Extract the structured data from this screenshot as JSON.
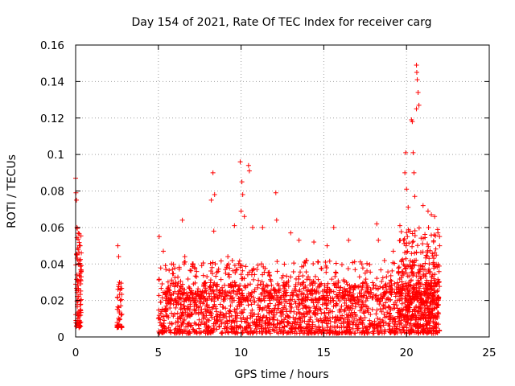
{
  "chart_data": {
    "type": "scatter",
    "title": "Day 154 of 2021, Rate Of TEC Index for receiver carg",
    "xlabel": "GPS time / hours",
    "ylabel": "ROTI / TECUs",
    "xlim": [
      0,
      25
    ],
    "ylim": [
      0,
      0.16
    ],
    "x_ticks": [
      0,
      5,
      10,
      15,
      20,
      25
    ],
    "x_tick_labels": [
      "0",
      "5",
      "10",
      "15",
      "20",
      "25"
    ],
    "y_ticks": [
      0,
      0.02,
      0.04,
      0.06,
      0.08,
      0.1,
      0.12,
      0.14,
      0.16
    ],
    "y_tick_labels": [
      "0",
      "0.02",
      "0.04",
      "0.06",
      "0.08",
      "0.1",
      "0.12",
      "0.14",
      "0.16"
    ],
    "grid": true,
    "marker": "plus",
    "series": [
      {
        "name": "ROTI",
        "color": "#ff0000",
        "points": [
          [
            0.0,
            0.087
          ],
          [
            0.02,
            0.079
          ],
          [
            0.05,
            0.075
          ],
          [
            0.08,
            0.06
          ],
          [
            0.1,
            0.045
          ],
          [
            0.12,
            0.03
          ],
          [
            0.15,
            0.02
          ],
          [
            0.18,
            0.012
          ],
          [
            0.2,
            0.008
          ],
          [
            0.25,
            0.05
          ],
          [
            0.28,
            0.035
          ],
          [
            0.3,
            0.015
          ],
          [
            2.55,
            0.05
          ],
          [
            2.6,
            0.044
          ],
          [
            2.65,
            0.03
          ],
          [
            2.7,
            0.02
          ],
          [
            2.75,
            0.012
          ],
          [
            5.05,
            0.055
          ],
          [
            5.3,
            0.047
          ],
          [
            5.8,
            0.04
          ],
          [
            6.45,
            0.064
          ],
          [
            6.6,
            0.044
          ],
          [
            7.3,
            0.033
          ],
          [
            8.2,
            0.075
          ],
          [
            8.3,
            0.09
          ],
          [
            8.4,
            0.078
          ],
          [
            8.35,
            0.058
          ],
          [
            9.2,
            0.044
          ],
          [
            9.6,
            0.061
          ],
          [
            9.95,
            0.096
          ],
          [
            10.05,
            0.085
          ],
          [
            10.1,
            0.078
          ],
          [
            10.0,
            0.069
          ],
          [
            10.2,
            0.066
          ],
          [
            10.45,
            0.094
          ],
          [
            10.5,
            0.091
          ],
          [
            10.7,
            0.06
          ],
          [
            11.3,
            0.06
          ],
          [
            12.1,
            0.079
          ],
          [
            12.15,
            0.064
          ],
          [
            13.0,
            0.057
          ],
          [
            13.5,
            0.053
          ],
          [
            14.4,
            0.052
          ],
          [
            15.2,
            0.05
          ],
          [
            15.6,
            0.06
          ],
          [
            16.5,
            0.053
          ],
          [
            17.3,
            0.04
          ],
          [
            18.2,
            0.062
          ],
          [
            18.3,
            0.053
          ],
          [
            19.2,
            0.047
          ],
          [
            19.6,
            0.061
          ],
          [
            19.9,
            0.09
          ],
          [
            19.95,
            0.101
          ],
          [
            20.0,
            0.081
          ],
          [
            20.1,
            0.071
          ],
          [
            20.3,
            0.119
          ],
          [
            20.35,
            0.118
          ],
          [
            20.4,
            0.101
          ],
          [
            20.45,
            0.09
          ],
          [
            20.5,
            0.077
          ],
          [
            20.6,
            0.149
          ],
          [
            20.62,
            0.145
          ],
          [
            20.65,
            0.141
          ],
          [
            20.7,
            0.134
          ],
          [
            20.75,
            0.127
          ],
          [
            20.6,
            0.125
          ],
          [
            21.0,
            0.072
          ],
          [
            21.3,
            0.069
          ],
          [
            21.5,
            0.067
          ],
          [
            21.7,
            0.066
          ],
          [
            21.9,
            0.057
          ],
          [
            22.0,
            0.05
          ]
        ],
        "clusters": [
          {
            "x_range": [
              0.0,
              0.35
            ],
            "y_range": [
              0.005,
              0.06
            ],
            "count": 90
          },
          {
            "x_range": [
              2.5,
              2.8
            ],
            "y_range": [
              0.005,
              0.03
            ],
            "count": 40
          },
          {
            "x_range": [
              5.0,
              22.0
            ],
            "y_range": [
              0.002,
              0.03
            ],
            "count": 1700
          },
          {
            "x_range": [
              5.0,
              22.0
            ],
            "y_range": [
              0.02,
              0.042
            ],
            "count": 500
          },
          {
            "x_range": [
              19.5,
              22.0
            ],
            "y_range": [
              0.01,
              0.06
            ],
            "count": 300
          }
        ]
      }
    ]
  }
}
